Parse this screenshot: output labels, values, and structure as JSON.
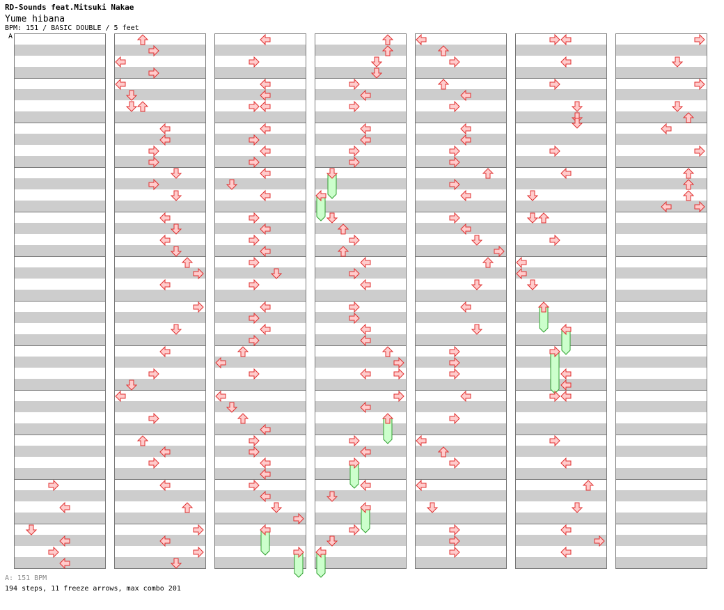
{
  "header": {
    "artist_line": "RD-Sounds feat.Mitsuki Nakae",
    "title": "Yume hibana",
    "info": "BPM: 151 / BASIC DOUBLE / 5 feet",
    "bpm_marker": "A"
  },
  "footer": {
    "bpm_legend": "A: 151 BPM",
    "stats": "194 steps, 11 freeze arrows, max combo 201"
  },
  "colors": {
    "arrow_fill": "#ffcccc",
    "arrow_stroke": "#e03030",
    "freeze_fill": "#ccffcc",
    "freeze_stroke": "#30a030",
    "stripe": "#cdcdcd"
  },
  "chart": {
    "lanes": [
      "L1",
      "D1",
      "U1",
      "R1",
      "L2",
      "D2",
      "U2",
      "R2"
    ],
    "measures_per_column": 12,
    "columns": [
      {
        "measure_start": 1,
        "notes": [
          [
            11,
            5,
            "R"
          ],
          [
            11,
            9,
            "L"
          ],
          [
            11,
            14,
            "R"
          ],
          [
            11,
            11,
            "L"
          ],
          [
            11,
            14.5,
            "R"
          ],
          [
            12,
            0.5,
            "D"
          ],
          [
            12,
            2,
            "L"
          ],
          [
            12,
            4,
            "R"
          ],
          [
            12,
            6,
            "L"
          ]
        ]
      },
      {
        "measure_start": 13,
        "notes": [
          [
            0,
            0,
            "U"
          ],
          [
            0,
            2,
            "R"
          ],
          [
            0,
            4,
            "L"
          ],
          [
            0,
            6,
            "R"
          ],
          [
            1,
            0,
            "L"
          ],
          [
            1,
            2,
            "D"
          ],
          [
            1,
            4,
            "D"
          ],
          [
            1,
            4,
            "U"
          ],
          [
            2,
            0,
            "L"
          ],
          [
            2,
            2,
            "L"
          ],
          [
            2,
            4,
            "R"
          ],
          [
            2,
            6,
            "R"
          ],
          [
            3,
            0,
            "D"
          ],
          [
            3,
            2,
            "R"
          ],
          [
            3,
            4,
            "D"
          ],
          [
            4,
            0,
            "L"
          ],
          [
            4,
            2,
            "D"
          ],
          [
            4,
            4,
            "L"
          ],
          [
            4,
            6,
            "D"
          ],
          [
            5,
            0,
            "U"
          ],
          [
            5,
            2,
            "R"
          ],
          [
            5,
            4,
            "L"
          ],
          [
            6,
            0,
            "R"
          ],
          [
            6,
            4,
            "D"
          ],
          [
            7,
            0,
            "L"
          ],
          [
            7,
            4,
            "R"
          ],
          [
            7,
            7,
            "D"
          ],
          [
            8,
            0,
            "L"
          ],
          [
            8,
            4,
            "R"
          ],
          [
            9,
            0,
            "L"
          ],
          [
            9,
            4,
            "U"
          ],
          [
            9,
            6,
            "R"
          ],
          [
            10,
            0,
            "L"
          ],
          [
            10,
            4,
            "U"
          ],
          [
            11,
            0,
            "R"
          ],
          [
            11,
            4,
            "U"
          ],
          [
            11,
            6,
            "R"
          ],
          [
            12,
            0,
            "L"
          ],
          [
            12,
            4,
            "R"
          ],
          [
            12,
            6,
            "D"
          ]
        ]
      }
    ],
    "columns_compact": [
      {
        "measure_start": 1,
        "notes": [
          [
            10,
            0,
            "R"
          ],
          [
            10,
            2,
            "L"
          ],
          [
            11,
            0,
            "D"
          ],
          [
            11,
            2,
            "L"
          ],
          [
            11,
            4,
            "R"
          ],
          [
            11,
            6,
            "L"
          ]
        ]
      },
      {
        "measure_start": 13,
        "notes": [
          [
            0,
            0,
            "U"
          ],
          [
            0,
            1,
            "R"
          ],
          [
            0,
            2,
            "L"
          ],
          [
            0,
            3,
            "R"
          ],
          [
            1,
            0,
            "L"
          ],
          [
            1,
            1,
            "D"
          ],
          [
            1,
            2,
            "D"
          ],
          [
            1,
            2.01,
            "U"
          ],
          [
            2,
            0,
            "L"
          ],
          [
            2,
            1,
            "L"
          ],
          [
            2,
            2,
            "R"
          ],
          [
            2,
            3,
            "R"
          ],
          [
            3,
            0,
            "D"
          ],
          [
            3,
            1,
            "R"
          ],
          [
            3,
            2,
            "D"
          ],
          [
            4,
            0,
            "L"
          ],
          [
            4,
            1,
            "D"
          ],
          [
            4,
            2,
            "L"
          ],
          [
            4,
            3,
            "D"
          ],
          [
            5,
            0,
            "U"
          ],
          [
            5,
            1,
            "R"
          ],
          [
            5,
            2,
            "L"
          ],
          [
            6,
            0,
            "R"
          ],
          [
            6,
            2,
            "D"
          ],
          [
            7,
            0,
            "L"
          ],
          [
            7,
            2,
            "R"
          ],
          [
            7,
            3,
            "D"
          ],
          [
            8,
            0,
            "L"
          ],
          [
            8,
            2,
            "R"
          ],
          [
            9,
            0,
            "L"
          ],
          [
            9,
            2,
            "U"
          ],
          [
            9,
            3,
            "R"
          ],
          [
            10,
            0,
            "L"
          ],
          [
            10,
            2,
            "U"
          ],
          [
            11,
            0,
            "R"
          ],
          [
            11,
            2,
            "U"
          ],
          [
            11,
            3,
            "R"
          ]
        ]
      }
    ]
  }
}
